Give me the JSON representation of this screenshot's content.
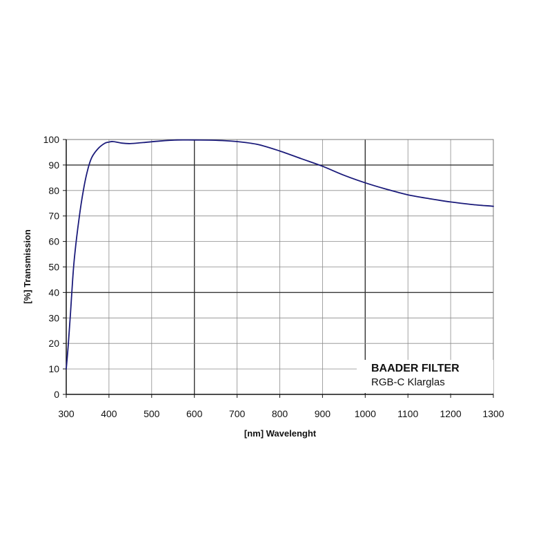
{
  "chart_data": {
    "type": "line",
    "xlabel": "[nm] Wavelenght",
    "ylabel": "[%] Transmission",
    "xlim": [
      300,
      1300
    ],
    "ylim": [
      0,
      100
    ],
    "x_ticks": [
      300,
      400,
      500,
      600,
      700,
      800,
      900,
      1000,
      1100,
      1200,
      1300
    ],
    "y_ticks": [
      0,
      10,
      20,
      30,
      40,
      50,
      60,
      70,
      80,
      90,
      100
    ],
    "emphasized_gridlines": {
      "x": [
        600,
        1000
      ],
      "y": [
        40,
        90
      ]
    },
    "grid": true,
    "legend": {
      "placement": "bottom-right",
      "title": "BAADER FILTER",
      "subtitle": "RGB-C Klarglas"
    },
    "series": [
      {
        "color": "#1a1a7a",
        "points": [
          [
            300,
            10
          ],
          [
            305,
            20
          ],
          [
            310,
            32
          ],
          [
            315,
            45
          ],
          [
            320,
            55
          ],
          [
            330,
            69
          ],
          [
            340,
            80
          ],
          [
            350,
            88
          ],
          [
            360,
            93
          ],
          [
            375,
            96.5
          ],
          [
            390,
            98.5
          ],
          [
            400,
            99
          ],
          [
            410,
            99.2
          ],
          [
            430,
            98.6
          ],
          [
            450,
            98.4
          ],
          [
            480,
            98.8
          ],
          [
            520,
            99.4
          ],
          [
            560,
            99.8
          ],
          [
            600,
            99.8
          ],
          [
            650,
            99.7
          ],
          [
            700,
            99.2
          ],
          [
            750,
            98
          ],
          [
            800,
            95.5
          ],
          [
            850,
            92.5
          ],
          [
            900,
            89.5
          ],
          [
            950,
            86
          ],
          [
            1000,
            83
          ],
          [
            1050,
            80.5
          ],
          [
            1100,
            78.3
          ],
          [
            1150,
            76.8
          ],
          [
            1200,
            75.5
          ],
          [
            1250,
            74.5
          ],
          [
            1300,
            73.8
          ]
        ]
      }
    ]
  }
}
